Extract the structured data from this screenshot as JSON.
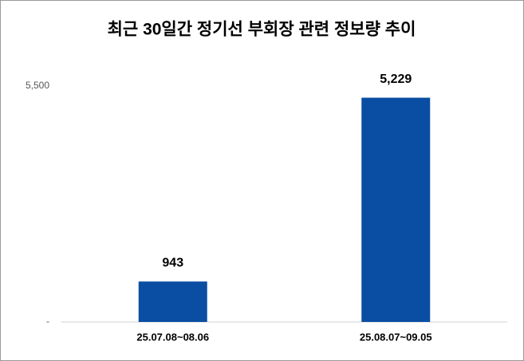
{
  "chart_data": {
    "type": "bar",
    "title": "최근 30일간 정기선 부회장 관련 정보량 추이",
    "categories": [
      "25.07.08~08.06",
      "25.08.07~09.05"
    ],
    "values": [
      943,
      5229
    ],
    "value_labels": [
      "943",
      "5,229"
    ],
    "color": "#0a4ea3",
    "ylim": [
      0,
      5500
    ],
    "yticks": [
      {
        "value": 0,
        "label": "-"
      },
      {
        "value": 5500,
        "label": "5,500"
      }
    ],
    "grid": false
  }
}
